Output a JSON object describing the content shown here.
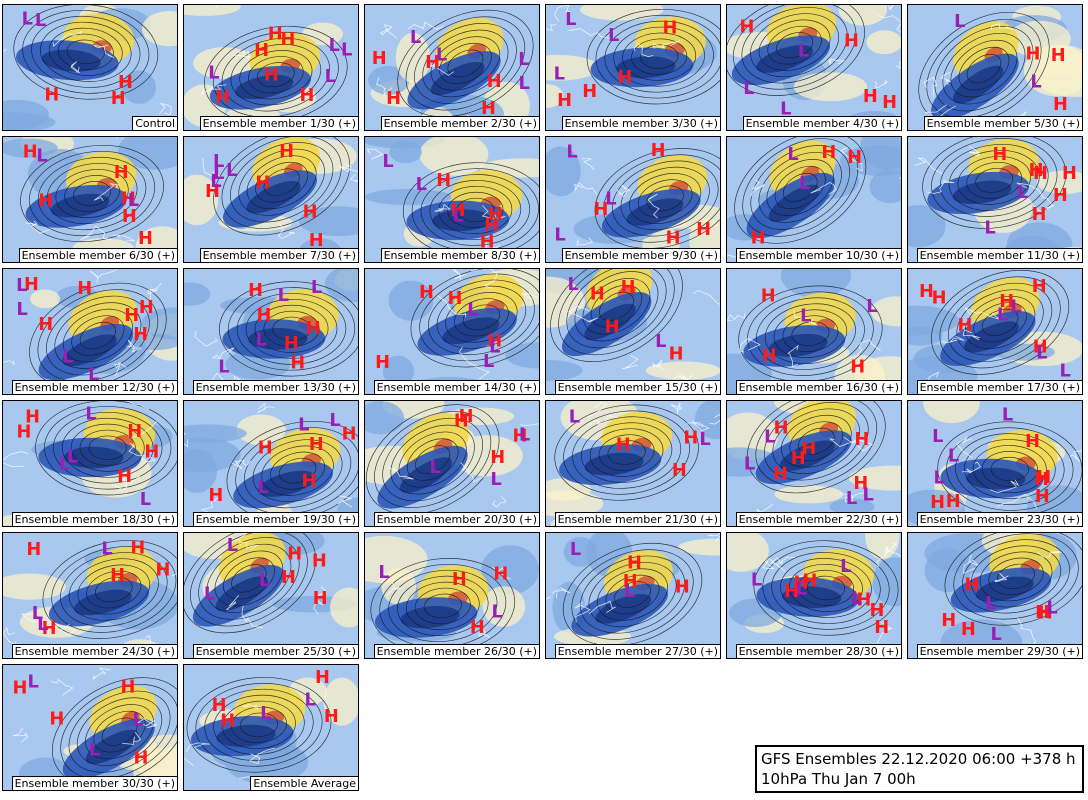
{
  "colors": {
    "ocean_background": "#a8c8f0",
    "positive_anomaly": "#f2d84a",
    "strong_positive": "#d2553a",
    "negative_anomaly": "#2a56b8",
    "contour": "#1a1a1a",
    "coast": "#ffffff",
    "high_label": "#ff1a1a",
    "low_label": "#9b1fb4"
  },
  "panels": [
    {
      "caption": "Control"
    },
    {
      "caption": "Ensemble member 1/30 (+)"
    },
    {
      "caption": "Ensemble member 2/30 (+)"
    },
    {
      "caption": "Ensemble member 3/30 (+)"
    },
    {
      "caption": "Ensemble member 4/30 (+)"
    },
    {
      "caption": "Ensemble member 5/30 (+)"
    },
    {
      "caption": "Ensemble member 6/30 (+)"
    },
    {
      "caption": "Ensemble member 7/30 (+)"
    },
    {
      "caption": "Ensemble member 8/30 (+)"
    },
    {
      "caption": "Ensemble member 9/30 (+)"
    },
    {
      "caption": "Ensemble member 10/30 (+)"
    },
    {
      "caption": "Ensemble member 11/30 (+)"
    },
    {
      "caption": "Ensemble member 12/30 (+)"
    },
    {
      "caption": "Ensemble member 13/30 (+)"
    },
    {
      "caption": "Ensemble member 14/30 (+)"
    },
    {
      "caption": "Ensemble member 15/30 (+)"
    },
    {
      "caption": "Ensemble member 16/30 (+)"
    },
    {
      "caption": "Ensemble member 17/30 (+)"
    },
    {
      "caption": "Ensemble member 18/30 (+)"
    },
    {
      "caption": "Ensemble member 19/30 (+)"
    },
    {
      "caption": "Ensemble member 20/30 (+)"
    },
    {
      "caption": "Ensemble member 21/30 (+)"
    },
    {
      "caption": "Ensemble member 22/30 (+)"
    },
    {
      "caption": "Ensemble member 23/30 (+)"
    },
    {
      "caption": "Ensemble member 24/30 (+)"
    },
    {
      "caption": "Ensemble member 25/30 (+)"
    },
    {
      "caption": "Ensemble member 26/30 (+)"
    },
    {
      "caption": "Ensemble member 27/30 (+)"
    },
    {
      "caption": "Ensemble member 28/30 (+)"
    },
    {
      "caption": "Ensemble member 29/30 (+)"
    },
    {
      "caption": "Ensemble member 30/30 (+)"
    },
    {
      "caption": "Ensemble Average"
    }
  ],
  "info": {
    "line1": "GFS Ensembles 22.12.2020 06:00 +378 h",
    "line2": "10hPa Thu Jan 7 00h"
  }
}
